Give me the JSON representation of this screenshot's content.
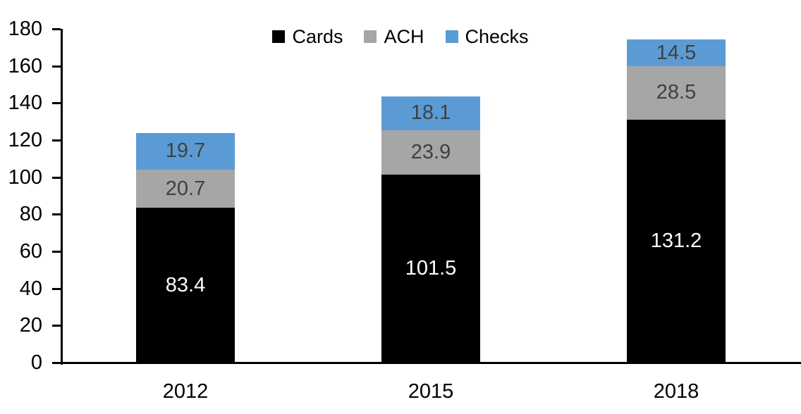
{
  "chart_data": {
    "type": "bar",
    "stacked": true,
    "title": "",
    "categories": [
      "2012",
      "2015",
      "2018"
    ],
    "series": [
      {
        "name": "Cards",
        "color": "#000000",
        "label_color": "#ffffff",
        "values": [
          83.4,
          101.5,
          131.2
        ]
      },
      {
        "name": "ACH",
        "color": "#a6a6a6",
        "label_color": "#404040",
        "values": [
          20.7,
          23.9,
          28.5
        ]
      },
      {
        "name": "Checks",
        "color": "#5b9bd5",
        "label_color": "#404040",
        "values": [
          19.7,
          18.1,
          14.5
        ]
      }
    ],
    "totals": [
      123.8,
      143.5,
      174.2
    ],
    "ylim": [
      0,
      180
    ],
    "ytick_step": 20,
    "yticks": [
      0,
      20,
      40,
      60,
      80,
      100,
      120,
      140,
      160,
      180
    ],
    "xlabel": "",
    "ylabel": "",
    "grid": false,
    "legend": {
      "position": "top",
      "entries": [
        "Cards",
        "ACH",
        "Checks"
      ]
    },
    "axis_color": "#000000",
    "data_labels": "center"
  }
}
